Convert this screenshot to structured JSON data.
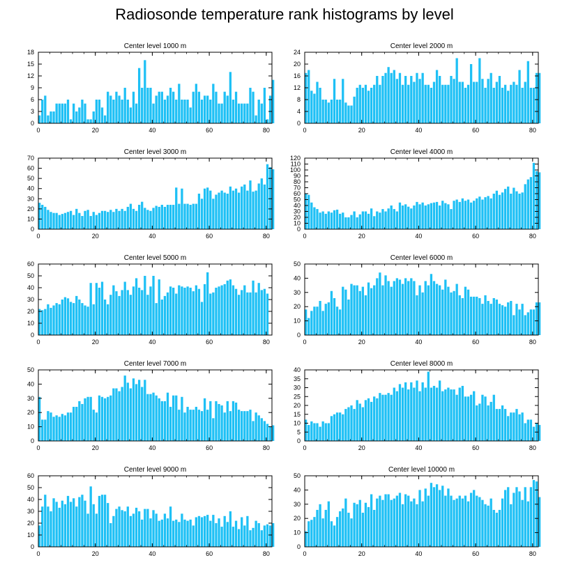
{
  "figure_title": "Radiosonde temperature rank histograms by level",
  "bar_color": "#1ec0f5",
  "chart_data": [
    {
      "type": "bar",
      "title": "Center level 1000 m",
      "xlabel": "",
      "ylabel": "",
      "xlim": [
        0,
        82
      ],
      "ylim": [
        0,
        18
      ],
      "xticks": [
        0,
        20,
        40,
        60,
        80
      ],
      "yticks": [
        0,
        3,
        6,
        9,
        12,
        15,
        18
      ],
      "x_start": 0,
      "values": [
        2,
        6,
        7,
        2,
        3,
        3,
        5,
        5,
        5,
        5,
        6,
        1,
        5,
        3,
        4,
        6,
        5,
        1,
        1,
        3,
        6,
        6,
        4,
        2,
        8,
        7,
        6,
        8,
        7,
        6,
        9,
        6,
        4,
        8,
        5,
        14,
        9,
        16,
        9,
        9,
        5,
        7,
        8,
        8,
        6,
        7,
        9,
        8,
        6,
        10,
        6,
        6,
        6,
        4,
        8,
        10,
        8,
        6,
        7,
        7,
        6,
        10,
        8,
        5,
        5,
        8,
        7,
        13,
        6,
        8,
        5,
        5,
        5,
        5,
        9,
        8,
        2,
        6,
        5,
        9,
        1,
        7,
        11
      ]
    },
    {
      "type": "bar",
      "title": "Center level 2000 m",
      "xlabel": "",
      "ylabel": "",
      "xlim": [
        0,
        82
      ],
      "ylim": [
        0,
        24
      ],
      "xticks": [
        0,
        20,
        40,
        60,
        80
      ],
      "yticks": [
        0,
        4,
        8,
        12,
        16,
        20,
        24
      ],
      "x_start": 0,
      "values": [
        17,
        18,
        11,
        10,
        14,
        12,
        8,
        8,
        7,
        8,
        15,
        8,
        8,
        15,
        7,
        6,
        6,
        9,
        12,
        13,
        12,
        13,
        11,
        12,
        13,
        16,
        13,
        16,
        17,
        19,
        17,
        18,
        15,
        17,
        13,
        16,
        13,
        16,
        14,
        17,
        15,
        17,
        13,
        13,
        12,
        14,
        18,
        16,
        13,
        13,
        13,
        16,
        15,
        22,
        14,
        14,
        12,
        13,
        20,
        14,
        14,
        22,
        15,
        12,
        15,
        17,
        12,
        14,
        16,
        12,
        13,
        11,
        13,
        14,
        13,
        18,
        12,
        14,
        21,
        12,
        12,
        17,
        17
      ]
    },
    {
      "type": "bar",
      "title": "Center level 3000 m",
      "xlabel": "",
      "ylabel": "",
      "xlim": [
        0,
        82
      ],
      "ylim": [
        0,
        70
      ],
      "xticks": [
        0,
        20,
        40,
        60,
        80
      ],
      "yticks": [
        0,
        10,
        20,
        30,
        40,
        50,
        60,
        70
      ],
      "x_start": 0,
      "values": [
        26,
        24,
        22,
        19,
        17,
        16,
        16,
        14,
        15,
        16,
        17,
        18,
        14,
        20,
        16,
        13,
        18,
        19,
        13,
        17,
        14,
        16,
        18,
        18,
        17,
        19,
        17,
        20,
        18,
        20,
        18,
        22,
        25,
        20,
        18,
        24,
        27,
        21,
        19,
        18,
        21,
        23,
        22,
        24,
        22,
        24,
        24,
        24,
        41,
        25,
        40,
        25,
        25,
        24,
        25,
        25,
        35,
        30,
        40,
        41,
        38,
        30,
        34,
        36,
        38,
        36,
        35,
        42,
        38,
        40,
        36,
        42,
        44,
        38,
        48,
        37,
        38,
        45,
        50,
        44,
        64,
        61,
        59
      ]
    },
    {
      "type": "bar",
      "title": "Center level 4000 m",
      "xlabel": "",
      "ylabel": "",
      "xlim": [
        0,
        82
      ],
      "ylim": [
        0,
        120
      ],
      "xticks": [
        0,
        20,
        40,
        60,
        80
      ],
      "yticks": [
        0,
        10,
        20,
        30,
        40,
        50,
        60,
        70,
        80,
        90,
        100,
        110,
        120
      ],
      "x_start": 0,
      "values": [
        60,
        58,
        45,
        37,
        34,
        28,
        30,
        26,
        30,
        28,
        32,
        33,
        26,
        28,
        20,
        20,
        24,
        30,
        20,
        25,
        30,
        30,
        26,
        35,
        22,
        30,
        28,
        34,
        30,
        35,
        40,
        34,
        30,
        45,
        40,
        42,
        38,
        35,
        40,
        46,
        42,
        45,
        40,
        42,
        44,
        45,
        46,
        40,
        48,
        44,
        42,
        34,
        48,
        50,
        46,
        52,
        48,
        50,
        45,
        48,
        52,
        55,
        50,
        54,
        56,
        52,
        60,
        65,
        58,
        62,
        68,
        72,
        60,
        70,
        64,
        60,
        62,
        76,
        84,
        88,
        112,
        98,
        96
      ]
    },
    {
      "type": "bar",
      "title": "Center level 5000 m",
      "xlabel": "",
      "ylabel": "",
      "xlim": [
        0,
        82
      ],
      "ylim": [
        0,
        60
      ],
      "xticks": [
        0,
        20,
        40,
        60,
        80
      ],
      "yticks": [
        0,
        10,
        20,
        30,
        40,
        50,
        60
      ],
      "x_start": 0,
      "values": [
        22,
        21,
        22,
        26,
        23,
        25,
        27,
        26,
        30,
        32,
        31,
        28,
        27,
        33,
        30,
        27,
        25,
        24,
        44,
        26,
        44,
        40,
        45,
        30,
        26,
        34,
        42,
        37,
        33,
        38,
        45,
        38,
        34,
        41,
        48,
        40,
        38,
        50,
        34,
        41,
        50,
        27,
        47,
        30,
        33,
        36,
        41,
        40,
        35,
        42,
        41,
        40,
        41,
        40,
        37,
        42,
        39,
        28,
        43,
        53,
        35,
        36,
        40,
        41,
        42,
        43,
        46,
        47,
        42,
        39,
        34,
        38,
        42,
        36,
        36,
        46,
        36,
        44,
        38,
        39,
        35
      ]
    },
    {
      "type": "bar",
      "title": "Center level 6000 m",
      "xlabel": "",
      "ylabel": "",
      "xlim": [
        0,
        82
      ],
      "ylim": [
        0,
        50
      ],
      "xticks": [
        0,
        20,
        40,
        60,
        80
      ],
      "yticks": [
        0,
        10,
        20,
        30,
        40,
        50
      ],
      "x_start": 0,
      "values": [
        18,
        12,
        17,
        20,
        20,
        24,
        17,
        22,
        23,
        31,
        26,
        20,
        18,
        34,
        32,
        25,
        36,
        35,
        35,
        31,
        34,
        28,
        37,
        33,
        35,
        40,
        44,
        35,
        42,
        38,
        34,
        38,
        40,
        39,
        36,
        40,
        38,
        40,
        38,
        28,
        35,
        30,
        38,
        35,
        43,
        38,
        36,
        35,
        32,
        39,
        34,
        30,
        31,
        36,
        28,
        26,
        34,
        32,
        27,
        27,
        27,
        26,
        22,
        28,
        24,
        22,
        26,
        25,
        22,
        21,
        20,
        23,
        24,
        14,
        22,
        18,
        22,
        14,
        16,
        18,
        18,
        23,
        23
      ]
    },
    {
      "type": "bar",
      "title": "Center level 7000 m",
      "xlabel": "",
      "ylabel": "",
      "xlim": [
        0,
        82
      ],
      "ylim": [
        0,
        50
      ],
      "xticks": [
        0,
        20,
        40,
        60,
        80
      ],
      "yticks": [
        0,
        10,
        20,
        30,
        40,
        50
      ],
      "x_start": 0,
      "values": [
        31,
        15,
        15,
        21,
        20,
        17,
        18,
        17,
        19,
        18,
        20,
        20,
        24,
        24,
        28,
        26,
        30,
        31,
        31,
        22,
        20,
        32,
        31,
        30,
        31,
        32,
        37,
        37,
        35,
        38,
        46,
        41,
        37,
        44,
        40,
        43,
        38,
        43,
        33,
        33,
        34,
        32,
        30,
        28,
        28,
        34,
        24,
        32,
        32,
        22,
        31,
        20,
        24,
        22,
        22,
        24,
        22,
        21,
        30,
        22,
        28,
        16,
        28,
        26,
        25,
        20,
        28,
        21,
        28,
        27,
        22,
        21,
        21,
        21,
        22,
        14,
        20,
        18,
        16,
        14,
        12,
        10,
        11
      ]
    },
    {
      "type": "bar",
      "title": "Center level 8000 m",
      "xlabel": "",
      "ylabel": "",
      "xlim": [
        0,
        82
      ],
      "ylim": [
        0,
        40
      ],
      "xticks": [
        0,
        20,
        40,
        60,
        80
      ],
      "yticks": [
        0,
        5,
        10,
        15,
        20,
        25,
        30,
        35,
        40
      ],
      "x_start": 0,
      "values": [
        12,
        9,
        11,
        10,
        10,
        8,
        11,
        10,
        10,
        14,
        15,
        16,
        16,
        15,
        18,
        19,
        20,
        18,
        23,
        21,
        19,
        23,
        24,
        22,
        25,
        24,
        27,
        26,
        26,
        27,
        26,
        30,
        28,
        32,
        30,
        33,
        29,
        33,
        30,
        34,
        28,
        33,
        30,
        39,
        30,
        31,
        30,
        34,
        28,
        29,
        30,
        29,
        29,
        26,
        30,
        31,
        25,
        25,
        26,
        28,
        20,
        21,
        26,
        25,
        20,
        22,
        26,
        18,
        18,
        20,
        18,
        14,
        16,
        16,
        18,
        15,
        16,
        10,
        12,
        12,
        8,
        10,
        9
      ]
    },
    {
      "type": "bar",
      "title": "Center level 9000 m",
      "xlabel": "",
      "ylabel": "",
      "xlim": [
        0,
        82
      ],
      "ylim": [
        0,
        60
      ],
      "xticks": [
        0,
        20,
        40,
        60,
        80
      ],
      "yticks": [
        0,
        10,
        20,
        30,
        40,
        50,
        60
      ],
      "x_start": 0,
      "values": [
        18,
        34,
        44,
        34,
        30,
        41,
        38,
        33,
        39,
        36,
        43,
        38,
        41,
        34,
        42,
        44,
        39,
        28,
        51,
        36,
        28,
        43,
        44,
        44,
        37,
        20,
        26,
        32,
        34,
        31,
        30,
        34,
        26,
        28,
        33,
        30,
        23,
        32,
        32,
        24,
        31,
        28,
        22,
        23,
        28,
        24,
        34,
        22,
        23,
        21,
        28,
        23,
        22,
        23,
        18,
        25,
        26,
        25,
        26,
        27,
        22,
        27,
        20,
        24,
        17,
        26,
        21,
        30,
        17,
        22,
        15,
        25,
        18,
        26,
        14,
        16,
        22,
        20,
        14,
        18,
        19,
        18,
        20
      ]
    },
    {
      "type": "bar",
      "title": "Center level 10000 m",
      "xlabel": "",
      "ylabel": "",
      "xlim": [
        0,
        82
      ],
      "ylim": [
        0,
        50
      ],
      "xticks": [
        0,
        20,
        40,
        60,
        80
      ],
      "yticks": [
        0,
        10,
        20,
        30,
        40,
        50
      ],
      "x_start": 0,
      "values": [
        11,
        18,
        19,
        21,
        26,
        30,
        20,
        26,
        32,
        18,
        15,
        21,
        25,
        27,
        34,
        24,
        20,
        31,
        30,
        33,
        24,
        31,
        28,
        37,
        26,
        34,
        36,
        33,
        37,
        37,
        33,
        34,
        36,
        38,
        30,
        37,
        36,
        32,
        34,
        30,
        40,
        32,
        41,
        36,
        45,
        42,
        44,
        40,
        43,
        36,
        41,
        36,
        33,
        34,
        36,
        34,
        36,
        32,
        38,
        40,
        36,
        35,
        33,
        30,
        29,
        34,
        26,
        24,
        26,
        34,
        40,
        42,
        30,
        38,
        42,
        39,
        33,
        42,
        32,
        42,
        47,
        46,
        35
      ]
    }
  ]
}
